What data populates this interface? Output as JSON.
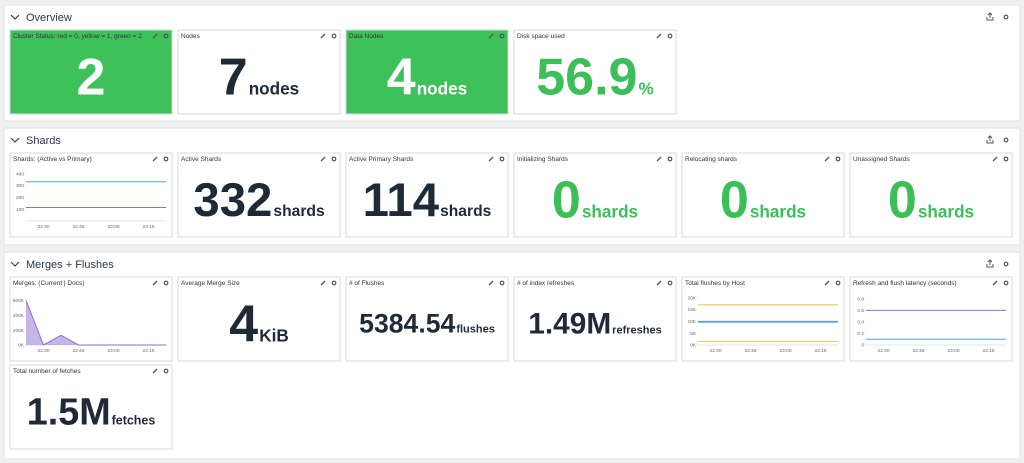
{
  "sections": [
    {
      "title": "Overview",
      "widgets": [
        {
          "title": "Cluster Status: red = 0, yellow = 1, green = 2",
          "value": "2",
          "background": "#3ec15b",
          "valueColor": "#ffffff"
        },
        {
          "title": "Nodes",
          "value": "7",
          "unit": "nodes",
          "valueColor": "#1e2a38"
        },
        {
          "title": "Data Nodes",
          "value": "4",
          "unit": "nodes",
          "background": "#3ec15b",
          "valueColor": "#ffffff"
        },
        {
          "title": "Disk space used",
          "value": "56.9",
          "unit": "%",
          "valueColor": "#3cbf58"
        }
      ]
    },
    {
      "title": "Shards",
      "widgets": [
        {
          "title": "Shards: (Active vs Primary)",
          "chart": {
            "type": "line",
            "categories": [
              null,
              "22:30",
              null,
              "22:45",
              null,
              "23:00",
              null,
              "23:15",
              null
            ],
            "ylim": [
              0,
              440
            ],
            "yticks": [
              100,
              200,
              300,
              400
            ],
            "series": [
              {
                "color": "#4aa3df",
                "values": [
                  332,
                  332,
                  332,
                  332,
                  332,
                  332,
                  332,
                  332,
                  332
                ]
              },
              {
                "color": "#8a6fd1",
                "values": [
                  114,
                  114,
                  114,
                  114,
                  114,
                  114,
                  114,
                  114,
                  114
                ]
              }
            ]
          }
        },
        {
          "title": "Active Shards",
          "value": "332",
          "unit": "shards",
          "valueColor": "#1e2a38"
        },
        {
          "title": "Active Primary Shards",
          "value": "114",
          "unit": "shards",
          "valueColor": "#1e2a38"
        },
        {
          "title": "Initializing Shards",
          "value": "0",
          "unit": "shards",
          "valueColor": "#3cbf58"
        },
        {
          "title": "Relocating shards",
          "value": "0",
          "unit": "shards",
          "valueColor": "#3cbf58"
        },
        {
          "title": "Unassigned Shards",
          "value": "0",
          "unit": "shards",
          "valueColor": "#3cbf58"
        }
      ]
    },
    {
      "title": "Merges + Flushes",
      "widgets": [
        {
          "title": "Merges: (Current | Docs)",
          "chart": {
            "type": "area",
            "categories": [
              null,
              "22:30",
              null,
              "22:45",
              null,
              "23:00",
              null,
              "23:15",
              null
            ],
            "ylim": [
              0,
              700000
            ],
            "yticks": [
              {
                "value": 0,
                "label": "0K"
              },
              {
                "value": 200000,
                "label": "200K"
              },
              {
                "value": 400000,
                "label": "400K"
              },
              {
                "value": 600000,
                "label": "600K"
              }
            ],
            "series": [
              {
                "color": "#8a6fd1",
                "values": [
                  600000,
                  0,
                  130000,
                  0,
                  0,
                  0,
                  0,
                  0,
                  0
                ]
              }
            ]
          }
        },
        {
          "title": "Average Merge Size",
          "value": "4",
          "unit": "KiB",
          "valueColor": "#1e2a38"
        },
        {
          "title": "# of Flushes",
          "value": "5384.54",
          "unit": "flushes",
          "valueColor": "#1e2a38"
        },
        {
          "title": "# of index refreshes",
          "value": "1.49M",
          "unit": "refreshes",
          "valueColor": "#1e2a38"
        },
        {
          "title": "Total flushes by Host",
          "chart": {
            "type": "line",
            "categories": [
              null,
              "22:30",
              null,
              "22:45",
              null,
              "23:00",
              null,
              "23:15",
              null
            ],
            "ylim": [
              0,
              22000
            ],
            "yticks": [
              {
                "value": 0,
                "label": "0K"
              },
              {
                "value": 5000,
                "label": "5K"
              },
              {
                "value": 10000,
                "label": "10K"
              },
              {
                "value": 15000,
                "label": "15K"
              },
              {
                "value": 20000,
                "label": "20K"
              }
            ],
            "series": [
              {
                "color": "#f5b642",
                "values": [
                  17000,
                  17000,
                  17000,
                  17000,
                  17000,
                  17000,
                  17000,
                  17000,
                  17000
                ]
              },
              {
                "color": "#4a90d9",
                "values": [
                  10000,
                  10000,
                  10000,
                  10000,
                  10000,
                  10000,
                  10000,
                  10000,
                  10000
                ]
              },
              {
                "color": "#6aa8e0",
                "values": [
                  9600,
                  9600,
                  9600,
                  9600,
                  9600,
                  9600,
                  9600,
                  9600,
                  9600
                ]
              },
              {
                "color": "#e8d44d",
                "values": [
                  1500,
                  1500,
                  1500,
                  1500,
                  1500,
                  1500,
                  1500,
                  1500,
                  1500
                ]
              }
            ]
          }
        },
        {
          "title": "Refresh and flush latency (seconds)",
          "chart": {
            "type": "line",
            "categories": [
              null,
              "22:30",
              null,
              "22:45",
              null,
              "23:00",
              null,
              "23:15",
              null
            ],
            "ylim": [
              0,
              0.9
            ],
            "yticks": [
              0,
              0.2,
              0.4,
              0.6,
              0.8
            ],
            "series": [
              {
                "color": "#8a6fd1",
                "values": [
                  0.6,
                  0.6,
                  0.6,
                  0.6,
                  0.6,
                  0.6,
                  0.6,
                  0.6,
                  0.6
                ]
              },
              {
                "color": "#4aa3df",
                "values": [
                  0.1,
                  0.1,
                  0.1,
                  0.1,
                  0.1,
                  0.1,
                  0.1,
                  0.1,
                  0.1
                ]
              }
            ]
          }
        },
        {
          "title": "Total number of fetches",
          "value": "1.5M",
          "unit": "fetches",
          "valueColor": "#1e2a38"
        }
      ]
    }
  ]
}
